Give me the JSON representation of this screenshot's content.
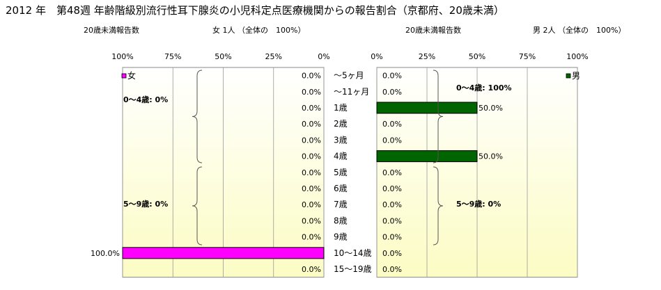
{
  "title": "2012 年　第48週 年齢階級別流行性耳下腺炎の小児科定点医療機関からの報告割合（京都府、20歳未満）",
  "female": {
    "count_label": "20歳未満報告数",
    "summary": "女  1人 （全体の　100%）",
    "legend": "女",
    "color": "#ff00ff",
    "group_labels": [
      "0～4歳:  0%",
      "5～9歳:  0%"
    ]
  },
  "male": {
    "count_label": "20歳未満報告数",
    "summary": "男  2人 （全体の　100%）",
    "legend": "男",
    "color": "#006400",
    "group_labels": [
      "0～4歳: 100%",
      "5～9歳:  0%"
    ]
  },
  "chart_data": [
    {
      "type": "bar",
      "orientation": "horizontal-reversed",
      "series": [
        {
          "name": "女",
          "values": [
            0,
            0,
            0,
            0,
            0,
            0,
            0,
            0,
            0,
            0,
            0,
            100,
            0
          ]
        }
      ],
      "categories": [
        "～5ヶ月",
        "～11ヶ月",
        "1歳",
        "2歳",
        "3歳",
        "4歳",
        "5歳",
        "6歳",
        "7歳",
        "8歳",
        "9歳",
        "10～14歳",
        "15～19歳"
      ],
      "xlim": [
        100,
        0
      ],
      "ticks": [
        "100%",
        "75%",
        "50%",
        "25%",
        "0%"
      ],
      "data_labels": [
        "0.0%",
        "0.0%",
        "0.0%",
        "0.0%",
        "0.0%",
        "0.0%",
        "0.0%",
        "0.0%",
        "0.0%",
        "0.0%",
        "0.0%",
        "100.0%",
        "0.0%"
      ]
    },
    {
      "type": "bar",
      "orientation": "horizontal",
      "series": [
        {
          "name": "男",
          "values": [
            0,
            0,
            50,
            0,
            0,
            50,
            0,
            0,
            0,
            0,
            0,
            0,
            0
          ]
        }
      ],
      "categories": [
        "～5ヶ月",
        "～11ヶ月",
        "1歳",
        "2歳",
        "3歳",
        "4歳",
        "5歳",
        "6歳",
        "7歳",
        "8歳",
        "9歳",
        "10～14歳",
        "15～19歳"
      ],
      "xlim": [
        0,
        100
      ],
      "ticks": [
        "0%",
        "25%",
        "50%",
        "75%",
        "100%"
      ],
      "data_labels": [
        "0.0%",
        "0.0%",
        "50.0%",
        "0.0%",
        "0.0%",
        "50.0%",
        "0.0%",
        "0.0%",
        "0.0%",
        "0.0%",
        "0.0%",
        "0.0%",
        "0.0%"
      ]
    }
  ]
}
